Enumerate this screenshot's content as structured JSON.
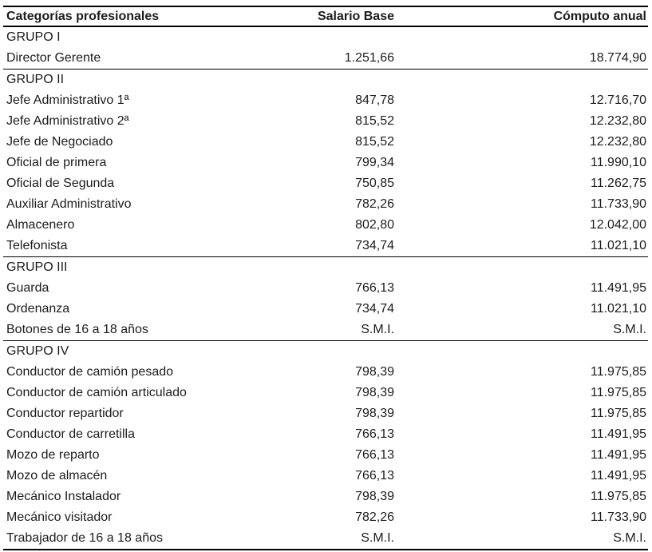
{
  "table": {
    "columns": [
      "Categorías profesionales",
      "Salario Base",
      "Cómputo anual"
    ],
    "sections": [
      {
        "group": "GRUPO I",
        "rows": [
          {
            "categoria": "Director Gerente",
            "salario_base": "1.251,66",
            "computo_anual": "18.774,90"
          }
        ]
      },
      {
        "group": "GRUPO II",
        "rows": [
          {
            "categoria": "Jefe Administrativo 1ª",
            "salario_base": "847,78",
            "computo_anual": "12.716,70"
          },
          {
            "categoria": "Jefe Administrativo 2ª",
            "salario_base": "815,52",
            "computo_anual": "12.232,80"
          },
          {
            "categoria": "Jefe de Negociado",
            "salario_base": "815,52",
            "computo_anual": "12.232,80"
          },
          {
            "categoria": "Oficial de primera",
            "salario_base": "799,34",
            "computo_anual": "11.990,10"
          },
          {
            "categoria": "Oficial de Segunda",
            "salario_base": "750,85",
            "computo_anual": "11.262,75"
          },
          {
            "categoria": "Auxiliar Administrativo",
            "salario_base": "782,26",
            "computo_anual": "11.733,90"
          },
          {
            "categoria": "Almacenero",
            "salario_base": "802,80",
            "computo_anual": "12.042,00"
          },
          {
            "categoria": "Telefonista",
            "salario_base": "734,74",
            "computo_anual": "11.021,10"
          }
        ]
      },
      {
        "group": "GRUPO III",
        "rows": [
          {
            "categoria": "Guarda",
            "salario_base": "766,13",
            "computo_anual": "11.491,95"
          },
          {
            "categoria": "Ordenanza",
            "salario_base": "734,74",
            "computo_anual": "11.021,10"
          },
          {
            "categoria": "Botones de 16 a 18 años",
            "salario_base": "S.M.I.",
            "computo_anual": "S.M.I."
          }
        ]
      },
      {
        "group": "GRUPO IV",
        "rows": [
          {
            "categoria": "Conductor de camión pesado",
            "salario_base": "798,39",
            "computo_anual": "11.975,85"
          },
          {
            "categoria": "Conductor de camión articulado",
            "salario_base": "798,39",
            "computo_anual": "11.975,85"
          },
          {
            "categoria": "Conductor repartidor",
            "salario_base": "798,39",
            "computo_anual": "11.975,85"
          },
          {
            "categoria": "Conductor de carretilla",
            "salario_base": "766,13",
            "computo_anual": "11.491,95"
          },
          {
            "categoria": "Mozo de reparto",
            "salario_base": "766,13",
            "computo_anual": "11.491,95"
          },
          {
            "categoria": "Mozo de almacén",
            "salario_base": "766,13",
            "computo_anual": "11.491,95"
          },
          {
            "categoria": "Mecánico Instalador",
            "salario_base": "798,39",
            "computo_anual": "11.975,85"
          },
          {
            "categoria": "Mecánico visitador",
            "salario_base": "782,26",
            "computo_anual": "11.733,90"
          },
          {
            "categoria": "Trabajador de 16 a 18 años",
            "salario_base": "S.M.I.",
            "computo_anual": "S.M.I."
          }
        ]
      }
    ]
  },
  "colors": {
    "text": "#1c1c1c",
    "rule": "#000000",
    "background": "#ffffff"
  }
}
